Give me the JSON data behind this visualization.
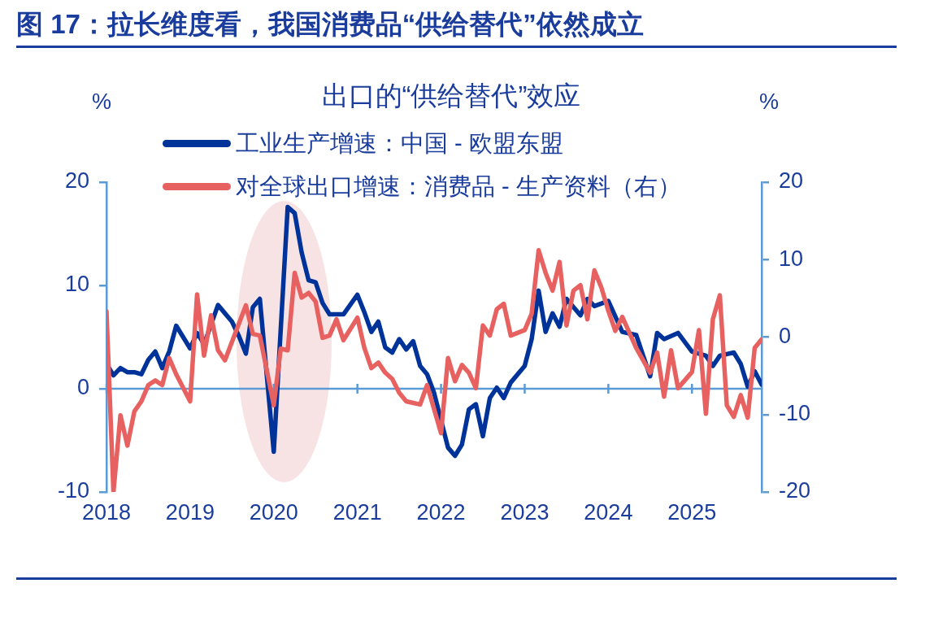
{
  "chart_data": {
    "type": "line",
    "title": "图 17：拉长维度看，我国消费品“供给替代”依然成立",
    "subtitle": "出口的“供给替代”效应",
    "ylabel": "%",
    "y2label": "%",
    "legend": "top",
    "ref_lines": [
      {
        "axis": "y",
        "value": 0,
        "color": "#5b9bd5"
      }
    ],
    "xlim": [
      "2018-01",
      "2025-11"
    ],
    "xticks": [
      {
        "value": "2018-01",
        "label": "2018"
      },
      {
        "value": "2019-01",
        "label": "2019"
      },
      {
        "value": "2020-01",
        "label": "2020"
      },
      {
        "value": "2021-01",
        "label": "2021"
      },
      {
        "value": "2022-01",
        "label": "2022"
      },
      {
        "value": "2023-01",
        "label": "2023"
      },
      {
        "value": "2024-01",
        "label": "2024"
      },
      {
        "value": "2025-01",
        "label": "2025"
      }
    ],
    "ylim": [
      -10,
      20
    ],
    "yticks": [
      -10,
      0,
      10,
      20
    ],
    "y2lim": [
      -20,
      20
    ],
    "y2ticks": [
      -20,
      -10,
      0,
      10,
      20
    ],
    "series": [
      {
        "name": "工业生产增速：中国 - 欧盟东盟",
        "color": "#00339a",
        "x": [
          "2018-01",
          "2018-02",
          "2018-03",
          "2018-04",
          "2018-05",
          "2018-06",
          "2018-07",
          "2018-08",
          "2018-09",
          "2018-10",
          "2018-11",
          "2019-01",
          "2019-02",
          "2019-03",
          "2019-05",
          "2019-07",
          "2019-08",
          "2019-09",
          "2019-10",
          "2019-11",
          "2020-01",
          "2020-03",
          "2020-04",
          "2020-05",
          "2020-06",
          "2020-07",
          "2020-08",
          "2020-09",
          "2020-11",
          "2021-01",
          "2021-02",
          "2021-03",
          "2021-04",
          "2021-05",
          "2021-06",
          "2021-07",
          "2021-08",
          "2021-09",
          "2021-10",
          "2021-11",
          "2021-12",
          "2022-02",
          "2022-03",
          "2022-04",
          "2022-05",
          "2022-06",
          "2022-07",
          "2022-08",
          "2022-09",
          "2022-10",
          "2022-11",
          "2023-01",
          "2023-02",
          "2023-03",
          "2023-04",
          "2023-05",
          "2023-06",
          "2023-07",
          "2023-09",
          "2023-10",
          "2023-11",
          "2024-01",
          "2024-02",
          "2024-03",
          "2024-05",
          "2024-07",
          "2024-08",
          "2024-09",
          "2024-11",
          "2025-01",
          "2025-03",
          "2025-04",
          "2025-05",
          "2025-07",
          "2025-08",
          "2025-09",
          "2025-10",
          "2025-11"
        ],
        "values": [
          2.4,
          1.3,
          2.0,
          1.6,
          1.6,
          1.4,
          2.8,
          3.6,
          2.0,
          3.6,
          6.1,
          3.9,
          5.4,
          4.3,
          8.1,
          6.5,
          5.1,
          3.4,
          7.9,
          8.7,
          -6.1,
          17.6,
          17.0,
          13.2,
          10.5,
          10.3,
          8.3,
          7.2,
          7.2,
          9.1,
          7.4,
          5.5,
          6.5,
          4.0,
          3.5,
          4.8,
          3.8,
          4.6,
          2.2,
          1.4,
          -0.4,
          -5.7,
          -6.5,
          -5.4,
          -2.0,
          -1.5,
          -4.6,
          -0.9,
          0.1,
          -0.9,
          0.6,
          2.2,
          4.8,
          9.5,
          5.5,
          7.3,
          6.0,
          8.7,
          7.1,
          8.7,
          8.0,
          8.5,
          7.0,
          5.5,
          5.2,
          1.2,
          5.4,
          4.8,
          5.4,
          3.6,
          3.2,
          2.2,
          3.2,
          3.5,
          2.4,
          0.2,
          1.7,
          0.4
        ]
      },
      {
        "name": "对全球出口增速：消费品 - 生产资料（右）",
        "color": "#e86161",
        "axis": "y2",
        "x": [
          "2018-01",
          "2018-02",
          "2018-03",
          "2018-04",
          "2018-05",
          "2018-06",
          "2018-07",
          "2018-08",
          "2018-09",
          "2018-10",
          "2018-11",
          "2019-01",
          "2019-02",
          "2019-03",
          "2019-04",
          "2019-05",
          "2019-06",
          "2019-09",
          "2019-10",
          "2019-11",
          "2020-01",
          "2020-02",
          "2020-03",
          "2020-04",
          "2020-05",
          "2020-06",
          "2020-07",
          "2020-08",
          "2020-09",
          "2020-10",
          "2020-11",
          "2021-01",
          "2021-02",
          "2021-03",
          "2021-04",
          "2021-05",
          "2021-06",
          "2021-07",
          "2021-08",
          "2021-10",
          "2021-11",
          "2022-01",
          "2022-02",
          "2022-03",
          "2022-04",
          "2022-05",
          "2022-06",
          "2022-07",
          "2022-08",
          "2022-09",
          "2022-10",
          "2022-11",
          "2023-01",
          "2023-02",
          "2023-03",
          "2023-04",
          "2023-05",
          "2023-06",
          "2023-07",
          "2023-08",
          "2023-09",
          "2023-10",
          "2023-11",
          "2023-12",
          "2024-01",
          "2024-02",
          "2024-03",
          "2024-05",
          "2024-07",
          "2024-08",
          "2024-09",
          "2024-10",
          "2024-11",
          "2025-01",
          "2025-02",
          "2025-03",
          "2025-04",
          "2025-05",
          "2025-06",
          "2025-07",
          "2025-08",
          "2025-09",
          "2025-10",
          "2025-11"
        ],
        "values": [
          3.3,
          -20,
          -10.1,
          -14.0,
          -9.6,
          -8.3,
          -6.2,
          -5.6,
          -6.2,
          -2.7,
          -4.8,
          -8.3,
          5.5,
          -2.4,
          2.8,
          -1.7,
          -3.0,
          4.1,
          0.4,
          0.2,
          -8.8,
          -1.5,
          -1.7,
          8.3,
          5.1,
          5.7,
          4.6,
          -0.1,
          0.2,
          2.3,
          -0.4,
          2.5,
          -1.4,
          -4.0,
          -3.3,
          -4.6,
          -5.4,
          -7.2,
          -8.3,
          -8.7,
          -6.2,
          -12.4,
          -2.7,
          -5.7,
          -3.6,
          -4.6,
          -6.6,
          1.5,
          0.2,
          3.6,
          4.3,
          0.2,
          0.9,
          3.0,
          11.2,
          8.3,
          6.0,
          9.7,
          1.5,
          6.0,
          6.7,
          2.3,
          8.6,
          6.4,
          3.4,
          0.8,
          2.6,
          -1.4,
          -4.6,
          -2.0,
          -7.7,
          -1.7,
          -6.6,
          -4.5,
          0.9,
          -9.9,
          2.3,
          5.4,
          -8.8,
          -10.3,
          -7.5,
          -10.4,
          -1.4,
          -0.3
        ]
      }
    ]
  }
}
